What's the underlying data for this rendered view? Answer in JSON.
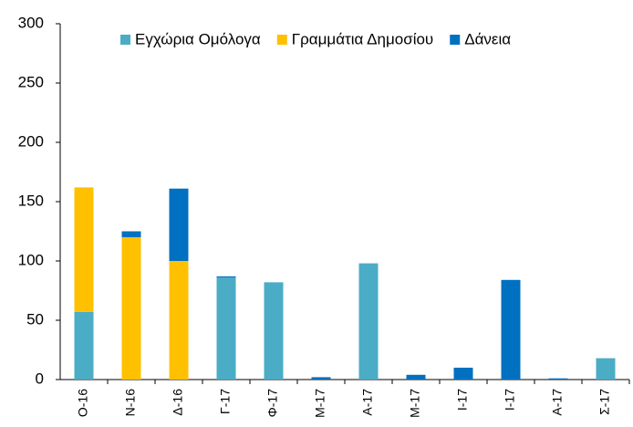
{
  "chart_data": {
    "type": "stacked_bar",
    "categories": [
      "Ο-16",
      "Ν-16",
      "Δ-16",
      "Γ-17",
      "Φ-17",
      "Μ-17",
      "Α-17",
      "Μ-17",
      "Ι-17",
      "Ι-17",
      "Α-17",
      "Σ-17"
    ],
    "series": [
      {
        "name": "Εγχώρια Ομόλογα",
        "color": "#4bacc6",
        "values": [
          57,
          0,
          0,
          86,
          82,
          0,
          98,
          0,
          0,
          0,
          0,
          18
        ]
      },
      {
        "name": "Γραμμάτια Δημοσίου",
        "color": "#ffc000",
        "values": [
          105,
          120,
          100,
          0,
          0,
          0,
          0,
          0,
          0,
          0,
          0,
          0
        ]
      },
      {
        "name": "Δάνεια",
        "color": "#0070c0",
        "values": [
          0,
          5,
          61,
          1,
          0,
          2,
          0,
          4,
          10,
          84,
          1,
          0
        ]
      }
    ],
    "ylim": [
      0,
      300
    ],
    "yticks": [
      0,
      50,
      100,
      150,
      200,
      250,
      300
    ],
    "legend": "top"
  }
}
